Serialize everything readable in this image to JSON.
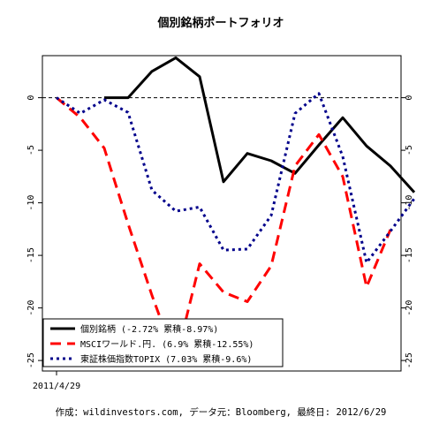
{
  "chart_data": {
    "type": "line",
    "title": "個別銘柄ポートフォリオ",
    "xlabel": "",
    "ylabel": "",
    "x_tick_labels": [
      {
        "index": 0,
        "label": "2011/4/29"
      }
    ],
    "y_ticks": [
      0,
      -5,
      -10,
      -15,
      -20,
      -25
    ],
    "ylim": [
      -26,
      4
    ],
    "x_count": 16,
    "reference_line": 0,
    "series": [
      {
        "name": "個別銘柄 (-2.72% 累積-8.97%)",
        "color": "#000000",
        "dash": "solid",
        "values": [
          null,
          null,
          0,
          0,
          2.5,
          3.8,
          2.0,
          -8.0,
          -5.3,
          -6.0,
          -7.2,
          -4.5,
          -1.9,
          -4.6,
          -6.5,
          -9.0
        ]
      },
      {
        "name": "MSCIワールド.円. (6.9% 累積-12.55%)",
        "color": "#ff0000",
        "dash": "dash",
        "values": [
          0,
          -1.9,
          -4.8,
          -12.0,
          -18.8,
          -25.0,
          -15.8,
          -18.5,
          -19.4,
          -16.0,
          -6.5,
          -3.5,
          -7.5,
          -18.0,
          -12.55,
          null
        ]
      },
      {
        "name": "東証株価指数TOPIX (7.03% 累積-9.6%)",
        "color": "#00008b",
        "dash": "dot",
        "values": [
          0,
          -1.5,
          -0.2,
          -1.4,
          -8.8,
          -10.8,
          -10.4,
          -14.5,
          -14.4,
          -11.2,
          -1.5,
          0.4,
          -5.6,
          -15.7,
          -12.7,
          -9.6
        ]
      }
    ],
    "legend_position": "bottom-left",
    "grid": false
  },
  "caption": "作成：wildinvestors.com, データ元：Bloomberg, 最終日: 2012/6/29"
}
